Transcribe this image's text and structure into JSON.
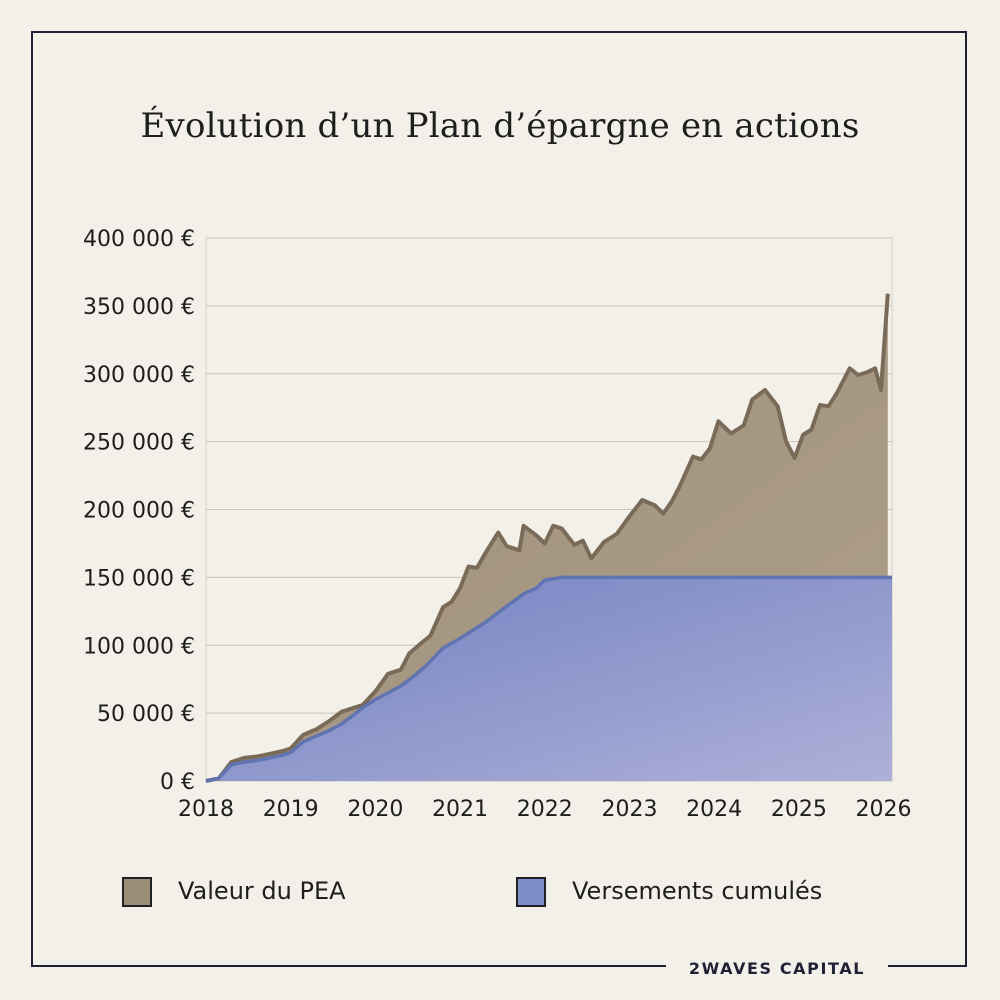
{
  "title": "Évolution d’un Plan d’épargne en actions",
  "brand": "2WAVES CAPITAL",
  "colors": {
    "background": "#f3efe9",
    "frame": "#1f2235",
    "valeur_fill": "#a89a86",
    "valeur_line": "#7a6b58",
    "versements_fill": "#7f90c8",
    "versements_line": "#5f74b0"
  },
  "chart_data": {
    "type": "area",
    "title": "Évolution d’un Plan d’épargne en actions",
    "xlabel": "",
    "ylabel": "",
    "ylim": [
      0,
      400000
    ],
    "xlim": [
      2018,
      2026.1
    ],
    "grid": true,
    "legend_position": "bottom",
    "y_ticks": [
      "0 €",
      "50 000 €",
      "100 000 €",
      "150 000 €",
      "200 000 €",
      "250 000 €",
      "300 000 €",
      "350 000 €",
      "400 000 €"
    ],
    "x_ticks": [
      "2018",
      "2019",
      "2020",
      "2021",
      "2022",
      "2023",
      "2024",
      "2025",
      "2026"
    ],
    "series": [
      {
        "name": "Valeur du PEA",
        "x": [
          2018.0,
          2018.15,
          2018.3,
          2018.45,
          2018.6,
          2018.75,
          2018.9,
          2019.0,
          2019.15,
          2019.3,
          2019.45,
          2019.6,
          2019.75,
          2019.85,
          2020.0,
          2020.15,
          2020.3,
          2020.4,
          2020.55,
          2020.65,
          2020.8,
          2020.9,
          2021.0,
          2021.1,
          2021.2,
          2021.3,
          2021.45,
          2021.55,
          2021.7,
          2021.75,
          2021.9,
          2022.0,
          2022.1,
          2022.2,
          2022.35,
          2022.45,
          2022.55,
          2022.7,
          2022.85,
          2023.0,
          2023.15,
          2023.3,
          2023.4,
          2023.5,
          2023.6,
          2023.75,
          2023.85,
          2023.95,
          2024.05,
          2024.2,
          2024.35,
          2024.45,
          2024.6,
          2024.75,
          2024.85,
          2024.95,
          2025.05,
          2025.15,
          2025.25,
          2025.35,
          2025.45,
          2025.6,
          2025.7,
          2025.8,
          2025.9,
          2025.97,
          2026.05
        ],
        "values": [
          0,
          2000,
          14000,
          17000,
          18000,
          20000,
          22000,
          24000,
          34000,
          38000,
          44000,
          51000,
          54000,
          56000,
          66000,
          79000,
          82000,
          94000,
          102000,
          107000,
          128000,
          132000,
          142000,
          158000,
          157000,
          168000,
          183000,
          173000,
          170000,
          188000,
          181000,
          175000,
          188000,
          186000,
          174000,
          177000,
          164000,
          176000,
          182000,
          195000,
          207000,
          203000,
          197000,
          206000,
          218000,
          239000,
          237000,
          245000,
          265000,
          256000,
          262000,
          281000,
          288000,
          276000,
          250000,
          238000,
          255000,
          259000,
          277000,
          276000,
          286000,
          304000,
          299000,
          301000,
          304000,
          288000,
          359000
        ]
      },
      {
        "name": "Versements cumulés",
        "x": [
          2018.0,
          2018.15,
          2018.3,
          2018.45,
          2018.6,
          2018.75,
          2018.9,
          2019.0,
          2019.15,
          2019.3,
          2019.45,
          2019.6,
          2019.75,
          2019.85,
          2020.0,
          2020.15,
          2020.3,
          2020.45,
          2020.6,
          2020.8,
          2021.0,
          2021.1,
          2021.3,
          2021.45,
          2021.6,
          2021.75,
          2021.9,
          2022.0,
          2022.2,
          2022.35,
          2026.1
        ],
        "values": [
          0,
          2000,
          12000,
          14000,
          15000,
          17000,
          19000,
          21000,
          29000,
          33000,
          37000,
          42000,
          49000,
          54000,
          60000,
          65000,
          70000,
          77000,
          85000,
          98000,
          105000,
          109000,
          117000,
          124000,
          131000,
          138000,
          142000,
          148000,
          150000,
          150000,
          150000
        ]
      }
    ]
  },
  "legend": [
    {
      "label": "Valeur du PEA",
      "icon": "swatch-valeur"
    },
    {
      "label": "Versements cumulés",
      "icon": "swatch-versements"
    }
  ]
}
